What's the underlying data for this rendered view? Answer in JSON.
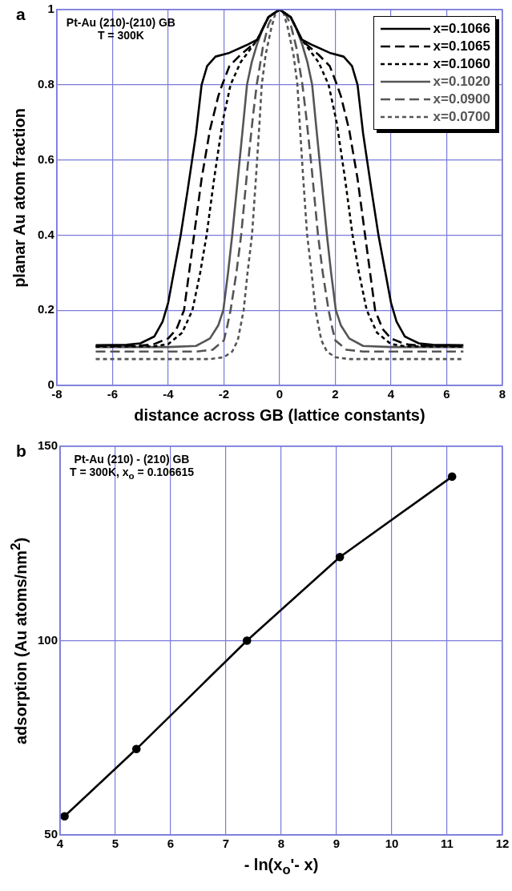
{
  "chart_data": [
    {
      "type": "line",
      "title": "a",
      "xlabel": "distance  across  GB  (lattice  constants)",
      "ylabel": "planar Au atom fraction",
      "annotations": [
        "Pt-Au  (210)-(210)  GB",
        "T = 300K"
      ],
      "xlim": [
        -8,
        8
      ],
      "xticks": [
        -8,
        -6,
        -4,
        -2,
        0,
        2,
        4,
        6,
        8
      ],
      "ylim": [
        0,
        1
      ],
      "yticks": [
        0,
        0.2,
        0.4,
        0.6,
        0.8,
        1
      ],
      "grid": true,
      "legend": "top right",
      "marker": "none",
      "series": [
        {
          "name": "x=0.1066",
          "color": "#000000",
          "line_style": "solid",
          "x": [
            -6.6,
            -5.5,
            -5,
            -4.5,
            -4.2,
            -4,
            -3.8,
            -3.55,
            -3.3,
            -3,
            -2.8,
            -2.6,
            -2.3,
            -1.8,
            -1.2,
            -0.8,
            -0.6,
            -0.4,
            -0.2,
            0,
            0.2,
            0.4,
            0.6,
            0.8,
            1.2,
            1.8,
            2.3,
            2.6,
            2.8,
            3,
            3.3,
            3.55,
            3.8,
            4,
            4.2,
            4.5,
            5,
            5.5,
            6.6
          ],
          "values": [
            0.107,
            0.108,
            0.112,
            0.13,
            0.17,
            0.22,
            0.3,
            0.4,
            0.52,
            0.67,
            0.8,
            0.85,
            0.875,
            0.885,
            0.905,
            0.92,
            0.95,
            0.98,
            0.99,
            1,
            0.99,
            0.98,
            0.95,
            0.92,
            0.905,
            0.885,
            0.875,
            0.85,
            0.8,
            0.67,
            0.52,
            0.4,
            0.3,
            0.22,
            0.17,
            0.13,
            0.112,
            0.108,
            0.107
          ]
        },
        {
          "name": "x=0.1065",
          "color": "#000000",
          "line_style": "dashed",
          "x": [
            -6.6,
            -5,
            -4.5,
            -4,
            -3.7,
            -3.43,
            -3.25,
            -3.07,
            -2.8,
            -2.5,
            -2.2,
            -2.06,
            -1.8,
            -1.4,
            -1,
            -0.8,
            -0.6,
            -0.4,
            -0.2,
            0,
            0.2,
            0.4,
            0.6,
            0.8,
            1,
            1.4,
            1.8,
            2.06,
            2.2,
            2.5,
            2.8,
            3.07,
            3.25,
            3.43,
            3.7,
            4,
            4.5,
            5,
            6.6
          ],
          "values": [
            0.105,
            0.106,
            0.11,
            0.125,
            0.15,
            0.2,
            0.3,
            0.4,
            0.55,
            0.68,
            0.77,
            0.8,
            0.85,
            0.88,
            0.905,
            0.92,
            0.95,
            0.98,
            0.99,
            1,
            0.99,
            0.98,
            0.95,
            0.92,
            0.905,
            0.88,
            0.85,
            0.8,
            0.77,
            0.68,
            0.55,
            0.4,
            0.3,
            0.2,
            0.15,
            0.125,
            0.11,
            0.106,
            0.105
          ]
        },
        {
          "name": "x=0.1060",
          "color": "#000000",
          "line_style": "dotted",
          "x": [
            -6.6,
            -4.5,
            -4,
            -3.5,
            -3.13,
            -2.85,
            -2.62,
            -2.35,
            -2.05,
            -1.76,
            -1.4,
            -1,
            -0.8,
            -0.6,
            -0.4,
            -0.2,
            0,
            0.2,
            0.4,
            0.6,
            0.8,
            1,
            1.4,
            1.76,
            2.05,
            2.35,
            2.62,
            2.85,
            3.13,
            3.5,
            4,
            4.5,
            6.6
          ],
          "values": [
            0.103,
            0.104,
            0.11,
            0.14,
            0.2,
            0.3,
            0.4,
            0.55,
            0.7,
            0.8,
            0.86,
            0.9,
            0.92,
            0.95,
            0.98,
            0.99,
            1,
            0.99,
            0.98,
            0.95,
            0.92,
            0.9,
            0.86,
            0.8,
            0.7,
            0.55,
            0.4,
            0.3,
            0.2,
            0.14,
            0.11,
            0.104,
            0.103
          ]
        },
        {
          "name": "x=0.1020",
          "color": "#555555",
          "line_style": "solid",
          "x": [
            -6.6,
            -4,
            -3,
            -2.5,
            -2.2,
            -2.02,
            -1.85,
            -1.7,
            -1.5,
            -1.3,
            -1.17,
            -1,
            -0.8,
            -0.6,
            -0.4,
            -0.2,
            0,
            0.2,
            0.4,
            0.6,
            0.8,
            1,
            1.17,
            1.3,
            1.5,
            1.7,
            1.85,
            2.02,
            2.2,
            2.5,
            3,
            4,
            6.6
          ],
          "values": [
            0.102,
            0.102,
            0.105,
            0.125,
            0.16,
            0.2,
            0.3,
            0.4,
            0.55,
            0.7,
            0.8,
            0.86,
            0.91,
            0.95,
            0.98,
            0.99,
            1,
            0.99,
            0.98,
            0.95,
            0.91,
            0.86,
            0.8,
            0.7,
            0.55,
            0.4,
            0.3,
            0.2,
            0.16,
            0.125,
            0.105,
            0.102,
            0.102
          ]
        },
        {
          "name": "x=0.0900",
          "color": "#555555",
          "line_style": "dashed",
          "x": [
            -6.6,
            -3,
            -2.4,
            -2,
            -1.9,
            -1.76,
            -1.55,
            -1.38,
            -1.15,
            -0.95,
            -0.82,
            -0.6,
            -0.4,
            -0.2,
            0,
            0.2,
            0.4,
            0.6,
            0.82,
            0.95,
            1.15,
            1.38,
            1.55,
            1.76,
            1.9,
            2,
            2.4,
            3,
            6.6
          ],
          "values": [
            0.09,
            0.09,
            0.095,
            0.12,
            0.15,
            0.2,
            0.3,
            0.4,
            0.58,
            0.72,
            0.8,
            0.9,
            0.96,
            0.99,
            1,
            0.99,
            0.96,
            0.9,
            0.8,
            0.72,
            0.58,
            0.4,
            0.3,
            0.2,
            0.15,
            0.12,
            0.095,
            0.09,
            0.09
          ]
        },
        {
          "name": "x=0.0700",
          "color": "#555555",
          "line_style": "dotted",
          "x": [
            -6.6,
            -2.5,
            -2,
            -1.7,
            -1.5,
            -1.29,
            -1.15,
            -0.99,
            -0.85,
            -0.72,
            -0.64,
            -0.5,
            -0.3,
            -0.15,
            0,
            0.15,
            0.3,
            0.5,
            0.64,
            0.72,
            0.85,
            0.99,
            1.15,
            1.29,
            1.5,
            1.7,
            2,
            2.5,
            6.6
          ],
          "values": [
            0.07,
            0.07,
            0.075,
            0.09,
            0.12,
            0.2,
            0.3,
            0.4,
            0.55,
            0.7,
            0.8,
            0.88,
            0.95,
            0.99,
            1,
            0.99,
            0.95,
            0.88,
            0.8,
            0.7,
            0.55,
            0.4,
            0.3,
            0.2,
            0.12,
            0.09,
            0.075,
            0.07,
            0.07
          ]
        }
      ]
    },
    {
      "type": "line",
      "title": "b",
      "xlabel": "- ln(x$_{o}$'- x)",
      "ylabel": "adsorption (Au atoms/nm$^{2}$)",
      "annotations": [
        "Pt-Au (210) - (210) GB",
        "T = 300K, x$_{o}$ = 0.106615"
      ],
      "xlim": [
        4,
        12
      ],
      "xticks": [
        4,
        5,
        6,
        7,
        8,
        9,
        10,
        11,
        12
      ],
      "ylim": [
        50,
        150
      ],
      "yticks": [
        50,
        100,
        150
      ],
      "grid": true,
      "marker": "circle",
      "line_style": "solid",
      "series": [
        {
          "color": "#000000",
          "x": [
            4.08,
            5.38,
            7.38,
            9.06,
            11.09
          ],
          "values": [
            54.8,
            72.1,
            100,
            121.5,
            142.2
          ]
        }
      ]
    }
  ]
}
